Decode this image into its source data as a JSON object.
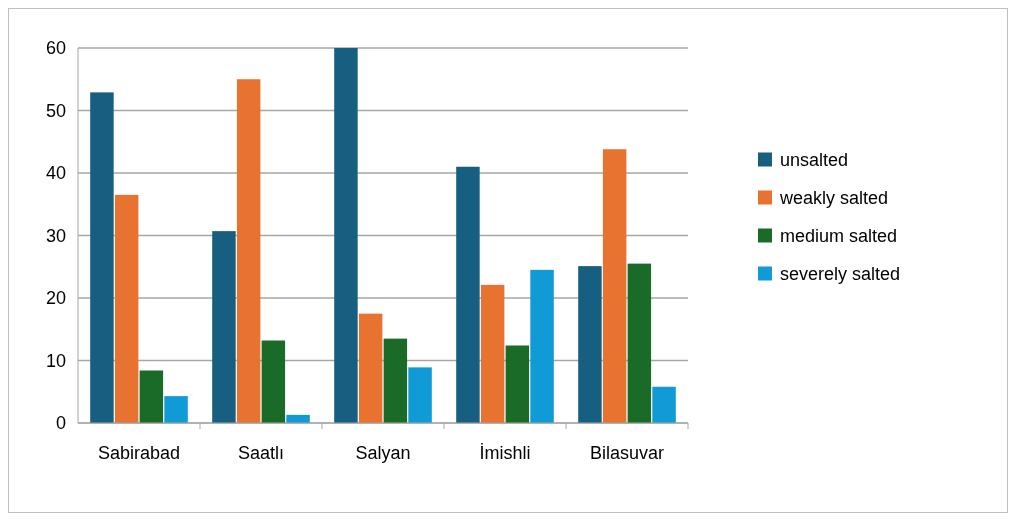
{
  "chart_data": {
    "type": "bar",
    "categories": [
      "Sabirabad",
      "Saatlı",
      "Salyan",
      "İmishli",
      "Bilasuvar"
    ],
    "series": [
      {
        "name": "unsalted",
        "color": "#175f80",
        "values": [
          52.9,
          30.7,
          60,
          41,
          25.1
        ]
      },
      {
        "name": "weakly salted",
        "color": "#e8722f",
        "values": [
          36.5,
          55,
          17.5,
          22.1,
          43.8
        ]
      },
      {
        "name": "medium salted",
        "color": "#1a6b27",
        "values": [
          8.4,
          13.2,
          13.5,
          12.4,
          25.5
        ]
      },
      {
        "name": "severely salted",
        "color": "#109bd6",
        "values": [
          4.3,
          1.3,
          8.9,
          24.5,
          5.8
        ]
      }
    ],
    "ylim": [
      0,
      60
    ],
    "yticks": [
      0,
      10,
      20,
      30,
      40,
      50,
      60
    ],
    "grid": "y",
    "legend": "right"
  }
}
